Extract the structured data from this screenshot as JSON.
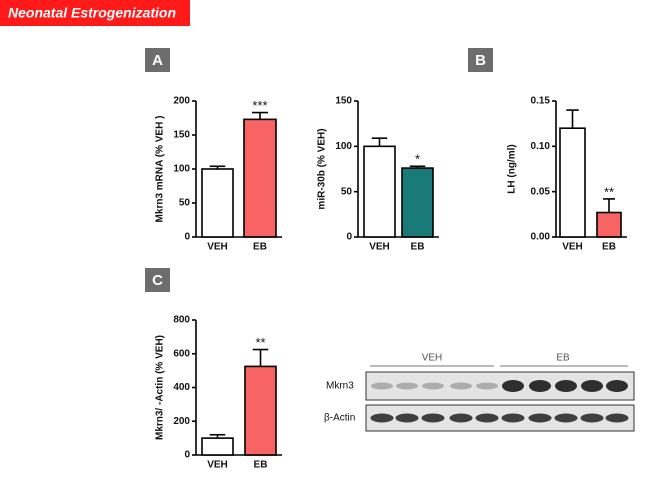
{
  "header": "Neonatal Estrogenization",
  "panels": [
    "A",
    "B",
    "C"
  ],
  "chart_data": [
    {
      "type": "bar",
      "y_label": "Mkrn3 mRNA (% VEH )",
      "categories": [
        "VEH",
        "EB"
      ],
      "values": [
        100,
        173
      ],
      "errors": [
        4,
        10
      ],
      "colors": [
        "#ffffff",
        "#f86464"
      ],
      "annotation": "***",
      "ylim": [
        0,
        200
      ],
      "yticks": [
        0,
        50,
        100,
        150,
        200
      ]
    },
    {
      "type": "bar",
      "y_label": "miR-30b (% VEH)",
      "categories": [
        "VEH",
        "EB"
      ],
      "values": [
        100,
        76
      ],
      "errors": [
        9,
        2
      ],
      "colors": [
        "#ffffff",
        "#1a7a78"
      ],
      "annotation": "*",
      "ylim": [
        0,
        150
      ],
      "yticks": [
        0,
        50,
        100,
        150
      ]
    },
    {
      "type": "bar",
      "y_label": "LH (ng/ml)",
      "categories": [
        "VEH",
        "EB"
      ],
      "values": [
        0.12,
        0.027
      ],
      "errors": [
        0.02,
        0.015
      ],
      "colors": [
        "#ffffff",
        "#f86464"
      ],
      "annotation": "**",
      "ylim": [
        0,
        0.15
      ],
      "yticks": [
        {
          "value": 0,
          "label": "0.00"
        },
        0.05,
        {
          "value": 0.1,
          "label": "0.10"
        },
        0.15
      ]
    },
    {
      "type": "bar",
      "y_label": "Mkrn3/ -Actin (% VEH)",
      "categories": [
        "VEH",
        "EB"
      ],
      "values": [
        100,
        525
      ],
      "errors": [
        20,
        100
      ],
      "colors": [
        "#ffffff",
        "#f86464"
      ],
      "annotation": "**",
      "ylim": [
        0,
        800
      ],
      "yticks": [
        0,
        200,
        400,
        600,
        800
      ]
    }
  ],
  "blot": {
    "groups": [
      "VEH",
      "EB"
    ],
    "rows": [
      "Mkrn3",
      "β-Actin"
    ]
  }
}
